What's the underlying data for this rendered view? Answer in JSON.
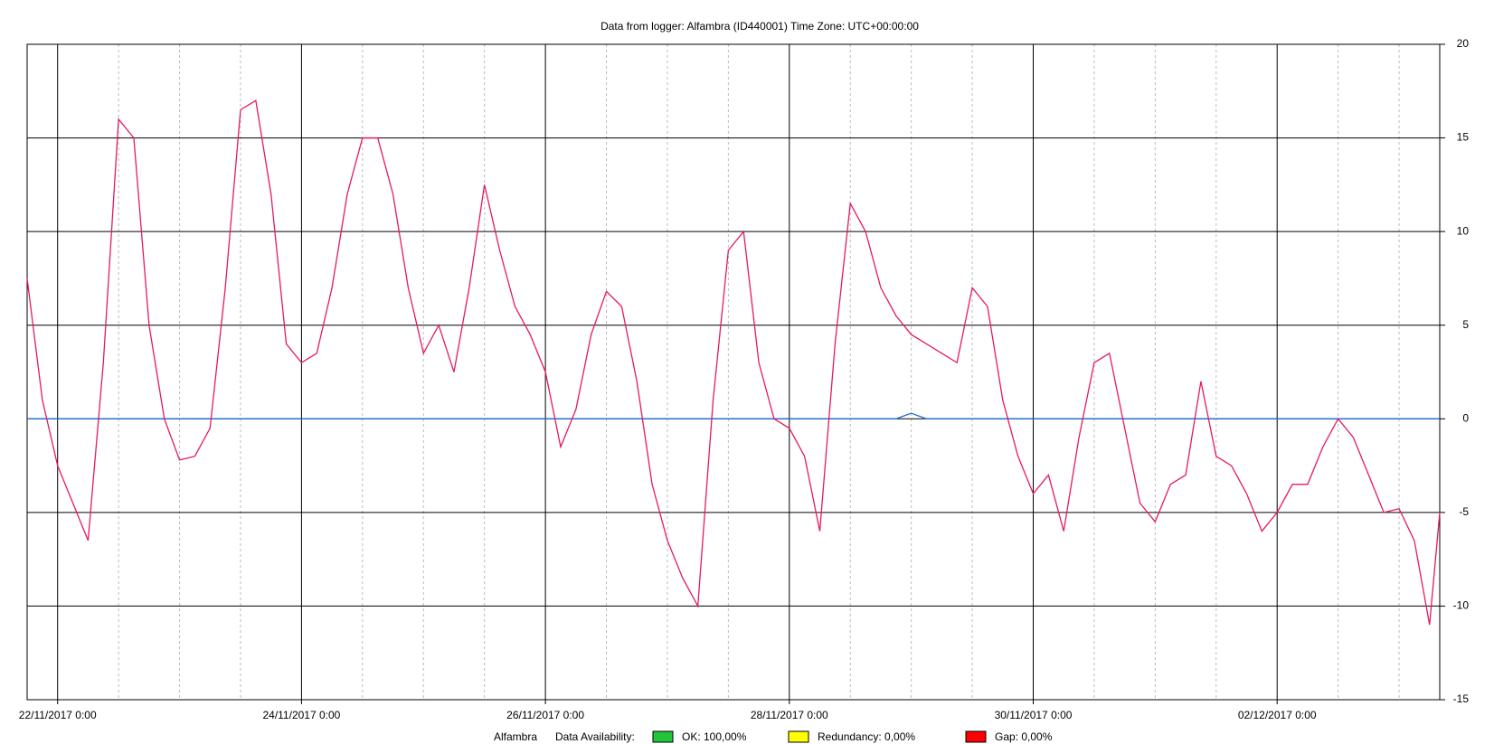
{
  "chart_data": {
    "type": "line",
    "title": "Data from logger: Alfambra (ID440001) Time Zone: UTC+00:00:00",
    "x": [
      "21/11/2017 18:00",
      "21/11/2017 21:00",
      "22/11/2017 0:00",
      "22/11/2017 3:00",
      "22/11/2017 6:00",
      "22/11/2017 9:00",
      "22/11/2017 12:00",
      "22/11/2017 15:00",
      "22/11/2017 18:00",
      "22/11/2017 21:00",
      "23/11/2017 0:00",
      "23/11/2017 3:00",
      "23/11/2017 6:00",
      "23/11/2017 9:00",
      "23/11/2017 12:00",
      "23/11/2017 15:00",
      "23/11/2017 18:00",
      "23/11/2017 21:00",
      "24/11/2017 0:00",
      "24/11/2017 3:00",
      "24/11/2017 6:00",
      "24/11/2017 9:00",
      "24/11/2017 12:00",
      "24/11/2017 15:00",
      "24/11/2017 18:00",
      "24/11/2017 21:00",
      "25/11/2017 0:00",
      "25/11/2017 3:00",
      "25/11/2017 6:00",
      "25/11/2017 9:00",
      "25/11/2017 12:00",
      "25/11/2017 15:00",
      "25/11/2017 18:00",
      "25/11/2017 21:00",
      "26/11/2017 0:00",
      "26/11/2017 3:00",
      "26/11/2017 6:00",
      "26/11/2017 9:00",
      "26/11/2017 12:00",
      "26/11/2017 15:00",
      "26/11/2017 18:00",
      "26/11/2017 21:00",
      "27/11/2017 0:00",
      "27/11/2017 3:00",
      "27/11/2017 6:00",
      "27/11/2017 9:00",
      "27/11/2017 12:00",
      "27/11/2017 15:00",
      "27/11/2017 18:00",
      "27/11/2017 21:00",
      "28/11/2017 0:00",
      "28/11/2017 3:00",
      "28/11/2017 6:00",
      "28/11/2017 9:00",
      "28/11/2017 12:00",
      "28/11/2017 15:00",
      "28/11/2017 18:00",
      "28/11/2017 21:00",
      "29/11/2017 0:00",
      "29/11/2017 3:00",
      "29/11/2017 6:00",
      "29/11/2017 9:00",
      "29/11/2017 12:00",
      "29/11/2017 15:00",
      "29/11/2017 18:00",
      "29/11/2017 21:00",
      "30/11/2017 0:00",
      "30/11/2017 3:00",
      "30/11/2017 6:00",
      "30/11/2017 9:00",
      "30/11/2017 12:00",
      "30/11/2017 15:00",
      "30/11/2017 18:00",
      "30/11/2017 21:00",
      "01/12/2017 0:00",
      "01/12/2017 3:00",
      "01/12/2017 6:00",
      "01/12/2017 9:00",
      "01/12/2017 12:00",
      "01/12/2017 15:00",
      "01/12/2017 18:00",
      "01/12/2017 21:00",
      "02/12/2017 0:00",
      "02/12/2017 3:00",
      "02/12/2017 6:00",
      "02/12/2017 9:00",
      "02/12/2017 12:00",
      "02/12/2017 15:00",
      "02/12/2017 18:00",
      "02/12/2017 21:00",
      "03/12/2017 0:00",
      "03/12/2017 3:00",
      "03/12/2017 6:00",
      "03/12/2017 8:00"
    ],
    "series": [
      {
        "name": "Alfambra",
        "color": "#e6195f",
        "values": [
          7.5,
          1,
          -2.5,
          -4.5,
          -6.5,
          3,
          16,
          15,
          5,
          0,
          -2.2,
          -2,
          -0.5,
          7,
          16.5,
          17,
          12,
          4,
          3,
          3.5,
          7,
          12,
          15,
          15,
          12,
          7,
          3.5,
          5,
          2.5,
          7,
          12.5,
          9,
          6,
          4.5,
          2.5,
          -1.5,
          0.5,
          4.5,
          6.8,
          6,
          2,
          -3.5,
          -6.5,
          -8.5,
          -10,
          1,
          9,
          10,
          3,
          0,
          -0.5,
          -2,
          -6,
          4,
          11.5,
          10,
          7,
          5.5,
          4.5,
          4,
          3.5,
          3,
          7,
          6,
          1,
          -2,
          -4,
          -3,
          -6,
          -1,
          3,
          3.5,
          -0.5,
          -4.5,
          -5.5,
          -3.5,
          -3,
          2,
          -2,
          -2.5,
          -4,
          -6,
          -5,
          -3.5,
          -3.5,
          -1.5,
          0,
          -1,
          -3,
          -5,
          -4.8,
          -6.5,
          -11,
          -5
        ]
      },
      {
        "color": "#1f6fd0",
        "values": [
          0,
          0,
          0,
          0,
          0,
          0,
          0,
          0,
          0,
          0,
          0,
          0,
          0,
          0,
          0,
          0,
          0,
          0,
          0,
          0,
          0,
          0,
          0,
          0,
          0,
          0,
          0,
          0,
          0,
          0,
          0,
          0,
          0,
          0,
          0,
          0,
          0,
          0,
          0,
          0,
          0,
          0,
          0,
          0,
          0,
          0,
          0,
          0,
          0,
          0,
          0,
          0,
          0,
          0,
          0,
          0,
          0,
          0,
          0.3,
          0,
          0,
          0,
          0,
          0,
          0,
          0,
          0,
          0,
          0,
          0,
          0,
          0,
          0,
          0,
          0,
          0,
          0,
          0,
          0,
          0,
          0,
          0,
          0,
          0,
          0,
          0,
          0,
          0,
          0,
          0,
          0,
          0,
          0,
          0
        ]
      }
    ],
    "xlim": [
      "21/11/2017 18:00",
      "03/12/2017 8:00"
    ],
    "xticks": [
      "22/11/2017 0:00",
      "24/11/2017 0:00",
      "26/11/2017 0:00",
      "28/11/2017 0:00",
      "30/11/2017 0:00",
      "02/12/2017 0:00"
    ],
    "minor_xticks": [
      "22/11/2017 12:00",
      "23/11/2017 0:00",
      "23/11/2017 12:00",
      "24/11/2017 12:00",
      "25/11/2017 0:00",
      "25/11/2017 12:00",
      "26/11/2017 12:00",
      "27/11/2017 0:00",
      "27/11/2017 12:00",
      "28/11/2017 12:00",
      "29/11/2017 0:00",
      "29/11/2017 12:00",
      "30/11/2017 12:00",
      "01/12/2017 0:00",
      "01/12/2017 12:00",
      "02/12/2017 12:00",
      "03/12/2017 0:00"
    ],
    "ylim": [
      -15,
      20
    ],
    "yticks": [
      -15,
      -10,
      -5,
      0,
      5,
      10,
      15,
      20
    ],
    "grid": true,
    "availability": {
      "label": "Data Availability:",
      "items": [
        {
          "label": "OK: 100,00%",
          "color": "#22c43a"
        },
        {
          "label": "Redundancy: 0,00%",
          "color": "#ffff00"
        },
        {
          "label": "Gap: 0,00%",
          "color": "#ff0000"
        }
      ]
    }
  }
}
